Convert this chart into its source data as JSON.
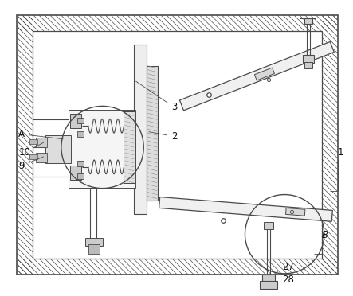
{
  "bg_color": "#ffffff",
  "line_color": "#4a4a4a",
  "fig_width": 4.43,
  "fig_height": 3.72
}
